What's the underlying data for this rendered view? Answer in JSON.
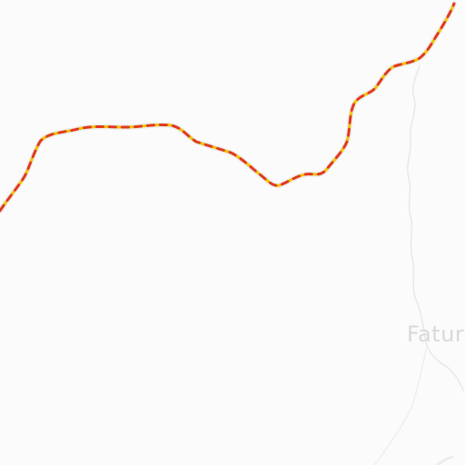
{
  "map": {
    "place_label": "Fatur",
    "colors": {
      "background": "#fbfbfb",
      "river": "#e9e9e9",
      "road_casing": "#ececec",
      "border_dash_red": "#e03a1c",
      "border_dash_yellow": "#f2c200",
      "label": "#d9d9d9"
    }
  }
}
